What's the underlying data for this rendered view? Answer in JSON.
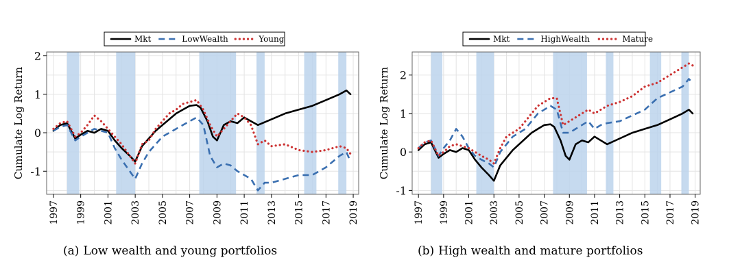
{
  "figure": {
    "captions": [
      {
        "label": "(a)",
        "text": "Low wealth and young portfolios"
      },
      {
        "label": "(b)",
        "text": "High wealth and mature portfolios"
      }
    ]
  },
  "chart_data": [
    {
      "type": "line",
      "title": "",
      "xlabel": "",
      "ylabel": "Cumulate Log Return",
      "xlim": [
        1996.5,
        2019.4
      ],
      "ylim": [
        -1.6,
        2.1
      ],
      "yticks": [
        -1,
        0,
        1,
        2
      ],
      "xticks": [
        1997,
        1999,
        2001,
        2003,
        2005,
        2007,
        2009,
        2011,
        2013,
        2015,
        2017,
        2019
      ],
      "grid": true,
      "legend_position": "top-center",
      "shaded_periods": [
        [
          1998.0,
          1998.9
        ],
        [
          2001.6,
          2003.0
        ],
        [
          2007.7,
          2010.4
        ],
        [
          2011.9,
          2012.5
        ],
        [
          2015.4,
          2016.3
        ],
        [
          2017.9,
          2018.5
        ]
      ],
      "series": [
        {
          "name": "Mkt",
          "color": "#000000",
          "style": "solid",
          "x": [
            1997,
            1997.5,
            1998,
            1998.6,
            1999,
            1999.5,
            2000,
            2000.5,
            2001,
            2001.5,
            2002,
            2002.6,
            2003,
            2003.5,
            2004,
            2004.5,
            2005,
            2005.5,
            2006,
            2006.5,
            2007,
            2007.5,
            2007.8,
            2008.3,
            2008.7,
            2009.0,
            2009.5,
            2010,
            2010.5,
            2011,
            2011.5,
            2012,
            2013,
            2014,
            2015,
            2016,
            2017,
            2018,
            2018.5,
            2018.8
          ],
          "y": [
            0.05,
            0.2,
            0.25,
            -0.15,
            -0.05,
            0.05,
            0.0,
            0.1,
            0.05,
            -0.2,
            -0.4,
            -0.6,
            -0.75,
            -0.35,
            -0.15,
            0.05,
            0.2,
            0.35,
            0.5,
            0.6,
            0.7,
            0.72,
            0.65,
            0.3,
            -0.1,
            -0.2,
            0.2,
            0.3,
            0.25,
            0.4,
            0.3,
            0.2,
            0.35,
            0.5,
            0.6,
            0.7,
            0.85,
            1.0,
            1.1,
            1.0
          ]
        },
        {
          "name": "LowWealth",
          "color": "#3a6fb0",
          "style": "dashed",
          "x": [
            1997,
            1997.5,
            1998,
            1998.6,
            1999,
            1999.5,
            2000,
            2000.5,
            2001,
            2001.5,
            2002,
            2002.6,
            2003,
            2003.5,
            2004,
            2004.5,
            2005,
            2005.5,
            2006,
            2006.5,
            2007,
            2007.5,
            2008,
            2008.5,
            2009,
            2009.5,
            2010,
            2010.5,
            2011,
            2011.5,
            2012,
            2012.5,
            2013,
            2014,
            2015,
            2016,
            2017,
            2018,
            2018.5,
            2018.8
          ],
          "y": [
            0.05,
            0.15,
            0.2,
            -0.2,
            -0.1,
            0.0,
            0.1,
            0.05,
            0.0,
            -0.4,
            -0.7,
            -1.0,
            -1.2,
            -0.8,
            -0.5,
            -0.3,
            -0.1,
            0.0,
            0.1,
            0.2,
            0.3,
            0.4,
            0.2,
            -0.6,
            -0.9,
            -0.8,
            -0.85,
            -1.0,
            -1.1,
            -1.2,
            -1.5,
            -1.3,
            -1.3,
            -1.2,
            -1.1,
            -1.1,
            -0.9,
            -0.6,
            -0.5,
            -0.75
          ]
        },
        {
          "name": "Young",
          "color": "#cc3333",
          "style": "dotted",
          "x": [
            1997,
            1997.5,
            1998,
            1998.6,
            1999,
            1999.5,
            2000,
            2000.5,
            2001,
            2001.5,
            2002,
            2002.6,
            2003,
            2003.5,
            2004,
            2004.5,
            2005,
            2005.5,
            2006,
            2006.5,
            2007,
            2007.5,
            2008,
            2008.5,
            2009,
            2009.5,
            2010,
            2010.5,
            2011,
            2011.5,
            2012,
            2012.5,
            2013,
            2014,
            2015,
            2016,
            2017,
            2018,
            2018.5,
            2018.8
          ],
          "y": [
            0.1,
            0.25,
            0.3,
            -0.1,
            0.0,
            0.2,
            0.45,
            0.3,
            0.1,
            -0.1,
            -0.3,
            -0.6,
            -0.8,
            -0.3,
            -0.2,
            0.1,
            0.3,
            0.5,
            0.6,
            0.75,
            0.8,
            0.85,
            0.6,
            0.2,
            -0.1,
            0.1,
            0.3,
            0.5,
            0.4,
            0.2,
            -0.3,
            -0.2,
            -0.35,
            -0.3,
            -0.45,
            -0.5,
            -0.45,
            -0.35,
            -0.4,
            -0.55
          ]
        }
      ]
    },
    {
      "type": "line",
      "title": "",
      "xlabel": "",
      "ylabel": "Cumulate Log Return",
      "xlim": [
        1996.5,
        2019.4
      ],
      "ylim": [
        -1.1,
        2.6
      ],
      "yticks": [
        -1,
        0,
        1,
        2
      ],
      "xticks": [
        1997,
        1999,
        2001,
        2003,
        2005,
        2007,
        2009,
        2011,
        2013,
        2015,
        2017,
        2019
      ],
      "grid": true,
      "legend_position": "top-center",
      "shaded_periods": [
        [
          1998.0,
          1998.9
        ],
        [
          2001.6,
          2003.0
        ],
        [
          2007.7,
          2010.4
        ],
        [
          2011.9,
          2012.5
        ],
        [
          2015.4,
          2016.3
        ],
        [
          2017.9,
          2018.5
        ]
      ],
      "series": [
        {
          "name": "Mkt",
          "color": "#000000",
          "style": "solid",
          "x": [
            1997,
            1997.5,
            1998,
            1998.6,
            1999,
            1999.5,
            2000,
            2000.5,
            2001,
            2001.5,
            2002,
            2002.6,
            2003,
            2003.5,
            2004,
            2004.5,
            2005,
            2005.5,
            2006,
            2006.5,
            2007,
            2007.5,
            2007.8,
            2008.3,
            2008.7,
            2009.0,
            2009.5,
            2010,
            2010.5,
            2011,
            2011.5,
            2012,
            2013,
            2014,
            2015,
            2016,
            2017,
            2018,
            2018.5,
            2018.8
          ],
          "y": [
            0.05,
            0.2,
            0.25,
            -0.15,
            -0.05,
            0.05,
            0.0,
            0.1,
            0.05,
            -0.2,
            -0.4,
            -0.6,
            -0.75,
            -0.35,
            -0.15,
            0.05,
            0.2,
            0.35,
            0.5,
            0.6,
            0.7,
            0.72,
            0.65,
            0.3,
            -0.1,
            -0.2,
            0.2,
            0.3,
            0.25,
            0.4,
            0.3,
            0.2,
            0.35,
            0.5,
            0.6,
            0.7,
            0.85,
            1.0,
            1.1,
            1.0
          ]
        },
        {
          "name": "HighWealth",
          "color": "#3a6fb0",
          "style": "dashed",
          "x": [
            1997,
            1997.5,
            1998,
            1998.6,
            1999,
            1999.5,
            2000,
            2000.5,
            2001,
            2001.5,
            2002,
            2002.6,
            2003,
            2003.5,
            2004,
            2004.5,
            2005,
            2005.5,
            2006,
            2006.5,
            2007,
            2007.5,
            2008,
            2008.5,
            2009,
            2009.5,
            2010,
            2010.5,
            2011,
            2011.5,
            2012,
            2013,
            2014,
            2015,
            2016,
            2017,
            2018,
            2018.5,
            2018.8
          ],
          "y": [
            0.1,
            0.25,
            0.3,
            -0.1,
            0.1,
            0.3,
            0.6,
            0.4,
            0.1,
            -0.1,
            -0.2,
            -0.3,
            -0.4,
            0.0,
            0.2,
            0.4,
            0.5,
            0.6,
            0.8,
            1.0,
            1.1,
            1.2,
            1.1,
            0.5,
            0.5,
            0.6,
            0.7,
            0.8,
            0.6,
            0.7,
            0.75,
            0.8,
            0.95,
            1.1,
            1.4,
            1.55,
            1.7,
            1.9,
            1.8
          ]
        },
        {
          "name": "Mature",
          "color": "#cc3333",
          "style": "dotted",
          "x": [
            1997,
            1997.5,
            1998,
            1998.6,
            1999,
            1999.5,
            2000,
            2000.5,
            2001,
            2001.5,
            2002,
            2002.6,
            2003,
            2003.5,
            2004,
            2004.5,
            2005,
            2005.5,
            2006,
            2006.5,
            2007,
            2007.5,
            2008,
            2008.5,
            2009,
            2009.5,
            2010,
            2010.5,
            2011,
            2011.5,
            2012,
            2013,
            2014,
            2015,
            2016,
            2017,
            2018,
            2018.5,
            2018.8
          ],
          "y": [
            0.1,
            0.25,
            0.3,
            -0.1,
            0.0,
            0.15,
            0.2,
            0.15,
            0.1,
            0.0,
            -0.1,
            -0.2,
            -0.3,
            0.1,
            0.4,
            0.5,
            0.6,
            0.8,
            1.0,
            1.2,
            1.3,
            1.4,
            1.4,
            0.7,
            0.8,
            0.9,
            1.0,
            1.1,
            1.0,
            1.1,
            1.2,
            1.3,
            1.45,
            1.7,
            1.8,
            2.0,
            2.2,
            2.3,
            2.25
          ]
        }
      ]
    }
  ]
}
